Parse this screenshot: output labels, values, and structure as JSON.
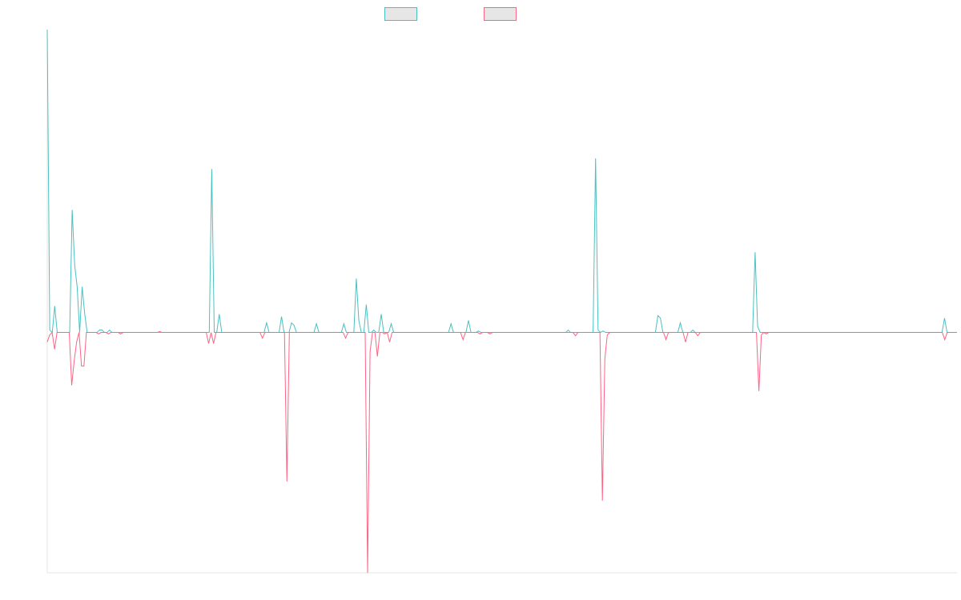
{
  "chart_data": {
    "type": "line",
    "title": "",
    "xlabel": "",
    "ylabel": "",
    "grid": false,
    "legend_position": "top-center",
    "ylim": [
      -50,
      63
    ],
    "series": [
      {
        "name": "",
        "color": "#4bc0c0",
        "legend_fill": "#e6e6e6",
        "values": [
          63,
          0.5,
          0,
          5.5,
          0,
          0,
          0,
          0,
          0,
          0,
          25.5,
          14,
          9.5,
          0,
          9.5,
          4,
          0,
          0,
          0,
          0,
          0,
          0.5,
          0.5,
          0,
          0,
          0.5,
          0,
          0,
          0,
          0,
          0,
          0,
          0,
          0,
          0,
          0,
          0,
          0,
          0,
          0,
          0,
          0,
          0,
          0,
          0,
          0,
          0,
          0,
          0,
          0,
          0,
          0,
          0,
          0,
          0,
          0,
          0,
          0,
          0,
          0,
          0,
          0,
          0,
          0,
          0,
          0,
          34,
          0,
          0,
          3.8,
          0,
          0,
          0,
          0,
          0,
          0,
          0,
          0,
          0,
          0,
          0,
          0,
          0,
          0,
          0,
          0,
          0,
          0,
          2,
          0,
          0,
          0,
          0,
          0,
          3.3,
          0,
          0,
          0,
          2,
          1.5,
          0,
          0,
          0,
          0,
          0,
          0,
          0,
          0,
          1.8,
          0,
          0,
          0,
          0,
          0,
          0,
          0,
          0,
          0,
          0,
          1.8,
          0,
          0,
          0,
          0,
          11.2,
          2.5,
          0,
          0,
          5.8,
          0,
          0,
          0.5,
          0,
          0,
          3.8,
          0,
          0,
          0,
          1.8,
          0,
          0,
          0,
          0,
          0,
          0,
          0,
          0,
          0,
          0,
          0,
          0,
          0,
          0,
          0,
          0,
          0,
          0,
          0,
          0,
          0,
          0,
          0,
          1.8,
          0,
          0,
          0,
          0,
          0,
          0,
          2.5,
          0,
          0,
          0,
          0.3,
          0,
          0,
          0,
          0,
          0,
          0,
          0,
          0,
          0,
          0,
          0,
          0,
          0,
          0,
          0,
          0,
          0,
          0,
          0,
          0,
          0,
          0,
          0,
          0,
          0,
          0,
          0,
          0,
          0,
          0,
          0,
          0,
          0,
          0,
          0,
          0.5,
          0,
          0,
          0,
          0,
          0,
          0,
          0,
          0,
          0,
          0,
          36.2,
          0.5,
          0,
          0.3,
          0,
          0,
          0,
          0,
          0,
          0,
          0,
          0,
          0,
          0,
          0,
          0,
          0,
          0,
          0,
          0,
          0,
          0,
          0,
          0,
          0,
          3.5,
          3,
          0,
          0,
          0,
          0,
          0,
          0,
          0,
          2,
          0,
          0,
          0,
          0,
          0.5,
          0,
          0,
          0,
          0,
          0,
          0,
          0,
          0,
          0,
          0,
          0,
          0,
          0,
          0,
          0,
          0,
          0,
          0,
          0,
          0,
          0,
          0,
          0,
          0,
          16.7,
          1.3,
          0,
          0,
          0,
          0,
          0,
          0,
          0,
          0,
          0,
          0,
          0,
          0,
          0,
          0,
          0,
          0,
          0,
          0,
          0,
          0,
          0,
          0,
          0,
          0,
          0,
          0,
          0,
          0,
          0,
          0,
          0,
          0,
          0,
          0,
          0,
          0,
          0,
          0,
          0,
          0,
          0,
          0,
          0,
          0,
          0,
          0,
          0,
          0,
          0,
          0,
          0,
          0,
          0,
          0,
          0,
          0,
          0,
          0,
          0,
          0,
          0,
          0,
          0,
          0,
          0,
          0,
          0,
          0,
          0,
          0,
          0,
          0,
          0,
          0,
          3,
          0,
          0,
          0,
          0,
          0
        ]
      },
      {
        "name": "",
        "color": "#ff6384",
        "legend_fill": "#e6e6e6",
        "values": [
          -2,
          -0.5,
          0,
          -3.5,
          0,
          0,
          0,
          0,
          0,
          0,
          -11,
          -6,
          -2,
          0,
          -7,
          -7,
          0,
          0,
          0,
          0,
          0,
          -0.3,
          0,
          0,
          0,
          -0.3,
          0,
          0,
          0,
          0,
          -0.3,
          0,
          0,
          0,
          0,
          0,
          0,
          0,
          0,
          0,
          0,
          0,
          0,
          0,
          0,
          0,
          0.2,
          0,
          0,
          0,
          0,
          0,
          0,
          0,
          0,
          0,
          0,
          0,
          0,
          0,
          0,
          0,
          0,
          0,
          0,
          0,
          -2.3,
          0,
          -2.3,
          0,
          0,
          0,
          0,
          0,
          0,
          0,
          0,
          0,
          0,
          0,
          0,
          0,
          0,
          0,
          0,
          0,
          0,
          0,
          -1.2,
          0,
          0,
          0,
          0,
          0,
          0,
          0,
          0,
          0,
          -31,
          0,
          0,
          0,
          0,
          0,
          0,
          0,
          0,
          0,
          0,
          0,
          0,
          0,
          0,
          0,
          0,
          0,
          0,
          0,
          0,
          0,
          0,
          0,
          -1.2,
          0,
          0,
          0,
          0,
          0,
          0,
          0,
          0,
          -50,
          -4,
          0,
          0,
          -5,
          0,
          0,
          -0.3,
          0,
          -2,
          0,
          0,
          0,
          0,
          0,
          0,
          0,
          0,
          0,
          0,
          0,
          0,
          0,
          0,
          0,
          0,
          0,
          0,
          0,
          0,
          0,
          0,
          0,
          0,
          0,
          0,
          0,
          0,
          0,
          -1.5,
          0,
          0,
          0,
          0,
          0,
          0,
          -0.3,
          0,
          0,
          0,
          -0.3,
          0,
          0,
          0,
          0,
          0,
          0,
          0,
          0,
          0,
          0,
          0,
          0,
          0,
          0,
          0,
          0,
          0,
          0,
          0,
          0,
          0,
          0,
          0,
          0,
          0,
          0,
          0,
          0,
          0,
          0,
          0,
          0,
          0,
          0,
          -0.7,
          0,
          0,
          0,
          0,
          0,
          0,
          0,
          0,
          0,
          0,
          -35,
          -5.5,
          -0.5,
          0,
          0,
          0,
          0,
          0,
          0,
          0,
          0,
          0,
          0,
          0,
          0,
          0,
          0,
          0,
          0,
          0,
          0,
          0,
          0,
          0,
          0,
          0,
          -1.5,
          0,
          0,
          0,
          0,
          0,
          0,
          0,
          -2,
          0,
          0,
          0,
          0,
          -0.7,
          0,
          0,
          0,
          0,
          0,
          0,
          0,
          0,
          0,
          0,
          0,
          0,
          0,
          0,
          0,
          0,
          0,
          0,
          0,
          0,
          0,
          0,
          0,
          0,
          -12.2,
          -0.5,
          0,
          -0.3,
          0,
          0,
          0,
          0,
          0,
          0,
          0,
          0,
          0,
          0,
          0,
          0,
          0,
          0,
          0,
          0,
          0,
          0,
          0,
          0,
          0,
          0,
          0,
          0,
          0,
          0,
          0,
          0,
          0,
          0,
          0,
          0,
          0,
          0,
          0,
          0,
          0,
          0,
          0,
          0,
          0,
          0,
          0,
          0,
          0,
          0,
          0,
          0,
          0,
          0,
          0,
          0,
          0,
          0,
          0,
          0,
          0,
          0,
          0,
          0,
          0,
          0,
          0,
          0,
          0,
          0,
          0,
          0,
          0,
          0,
          0,
          0,
          -1.5,
          0,
          0,
          0,
          0,
          0
        ]
      }
    ]
  }
}
